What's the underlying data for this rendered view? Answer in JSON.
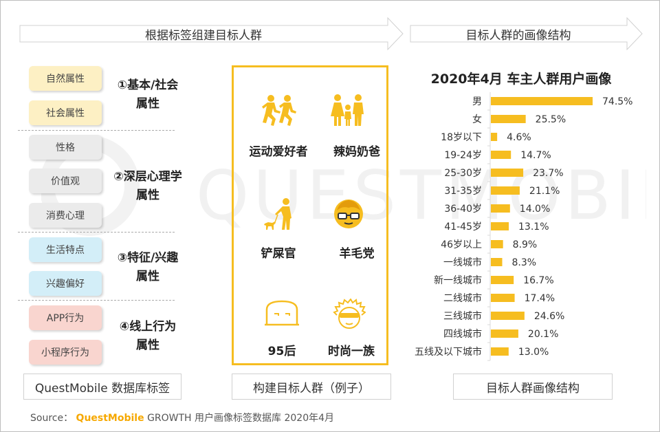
{
  "left_header": "根据标签组建目标人群",
  "right_header": "目标人群的画像结构",
  "tags": [
    {
      "label": "自然属性",
      "color": "yellow"
    },
    {
      "label": "社会属性",
      "color": "yellow"
    },
    {
      "label": "性格",
      "color": "grey"
    },
    {
      "label": "价值观",
      "color": "grey"
    },
    {
      "label": "消费心理",
      "color": "grey"
    },
    {
      "label": "生活特点",
      "color": "blue"
    },
    {
      "label": "兴趣偏好",
      "color": "blue"
    },
    {
      "label": "APP行为",
      "color": "pink"
    },
    {
      "label": "小程序行为",
      "color": "pink"
    }
  ],
  "groups": [
    {
      "line1": "①基本/社会",
      "line2": "属性"
    },
    {
      "line1": "②深层心理学",
      "line2": "属性"
    },
    {
      "line1": "③特征/兴趣",
      "line2": "属性"
    },
    {
      "line1": "④线上行为",
      "line2": "属性"
    }
  ],
  "personas": [
    {
      "label": "运动爱好者",
      "icon": "runners-icon"
    },
    {
      "label": "辣妈奶爸",
      "icon": "family-icon"
    },
    {
      "label": "铲屎官",
      "icon": "dog-walker-icon"
    },
    {
      "label": "羊毛党",
      "icon": "glasses-face-icon"
    },
    {
      "label": "95后",
      "icon": "cool-face-icon"
    },
    {
      "label": "时尚一族",
      "icon": "sunglasses-face-icon"
    }
  ],
  "footers": {
    "left": "QuestMobile 数据库标签",
    "middle": "构建目标人群（例子）",
    "right": "目标人群画像结构"
  },
  "watermark": "QUESTMOBILE",
  "source": {
    "prefix": "Source：",
    "brand": "QuestMobile",
    "text": "GROWTH 用户画像标签数据库 2020年4月"
  },
  "colors": {
    "accent": "#f6bd20",
    "bar": "#f6bd20"
  },
  "chart_data": {
    "type": "bar",
    "orientation": "horizontal",
    "title": "2020年4月 车主人群用户画像",
    "categories": [
      "男",
      "女",
      "18岁以下",
      "19-24岁",
      "25-30岁",
      "31-35岁",
      "36-40岁",
      "41-45岁",
      "46岁以上",
      "一线城市",
      "新一线城市",
      "二线城市",
      "三线城市",
      "四线城市",
      "五线及以下城市"
    ],
    "values": [
      74.5,
      25.5,
      4.6,
      14.7,
      23.7,
      21.1,
      14.0,
      13.1,
      8.9,
      8.3,
      16.7,
      17.4,
      24.6,
      20.1,
      13.0
    ],
    "value_labels": [
      "74.5%",
      "25.5%",
      "4.6%",
      "14.7%",
      "23.7%",
      "21.1%",
      "14.0%",
      "13.1%",
      "8.9%",
      "8.3%",
      "16.7%",
      "17.4%",
      "24.6%",
      "20.1%",
      "13.0%"
    ],
    "xlim": [
      0,
      74.5
    ],
    "grid": false,
    "legend": "none"
  }
}
